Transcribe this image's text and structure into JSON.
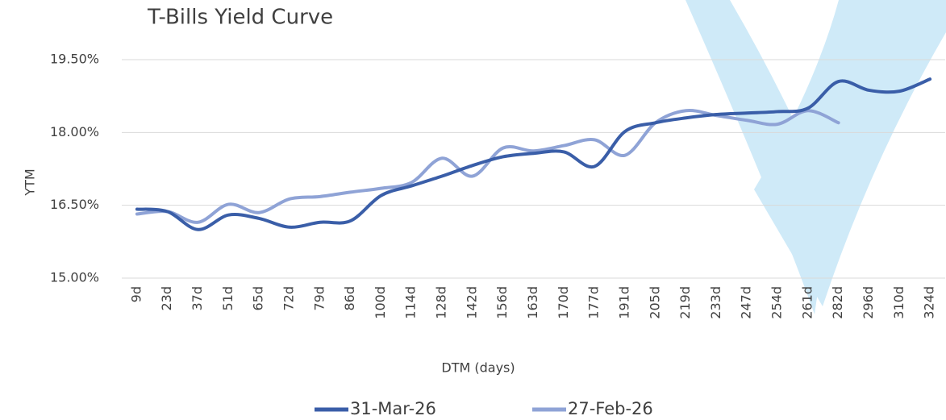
{
  "chart_data": {
    "type": "line",
    "title": "T-Bills Yield Curve",
    "x_label": "DTM (days)",
    "y_label": "YTM",
    "categories": [
      "9d",
      "23d",
      "37d",
      "51d",
      "65d",
      "72d",
      "79d",
      "86d",
      "100d",
      "114d",
      "128d",
      "142d",
      "156d",
      "163d",
      "170d",
      "177d",
      "191d",
      "205d",
      "219d",
      "233d",
      "247d",
      "254d",
      "261d",
      "282d",
      "296d",
      "310d",
      "324d"
    ],
    "series": [
      {
        "name": "31-Mar-26",
        "color": "#3a5ea8",
        "values": [
          16.42,
          16.37,
          16.0,
          16.3,
          16.23,
          16.05,
          16.15,
          16.18,
          16.7,
          16.9,
          17.1,
          17.32,
          17.5,
          17.57,
          17.6,
          17.3,
          18.02,
          18.2,
          18.3,
          18.37,
          18.4,
          18.43,
          18.5,
          19.05,
          18.87,
          18.85,
          19.1
        ]
      },
      {
        "name": "27-Feb-26",
        "color": "#8fa3d6",
        "values": [
          16.32,
          16.37,
          16.15,
          16.52,
          16.35,
          16.63,
          16.68,
          16.77,
          16.85,
          16.97,
          17.47,
          17.1,
          17.68,
          17.62,
          17.73,
          17.85,
          17.53,
          18.2,
          18.45,
          18.35,
          18.25,
          18.17,
          18.45,
          18.2,
          null,
          null,
          null
        ]
      }
    ],
    "ylim": [
      15,
      19.5
    ],
    "yticks": [
      {
        "value": 15,
        "label": "15.00%"
      },
      {
        "value": 16.5,
        "label": "16.50%"
      },
      {
        "value": 18,
        "label": "18.00%"
      },
      {
        "value": 19.5,
        "label": "19.50%"
      }
    ],
    "grid": true,
    "legend": "bottom"
  }
}
